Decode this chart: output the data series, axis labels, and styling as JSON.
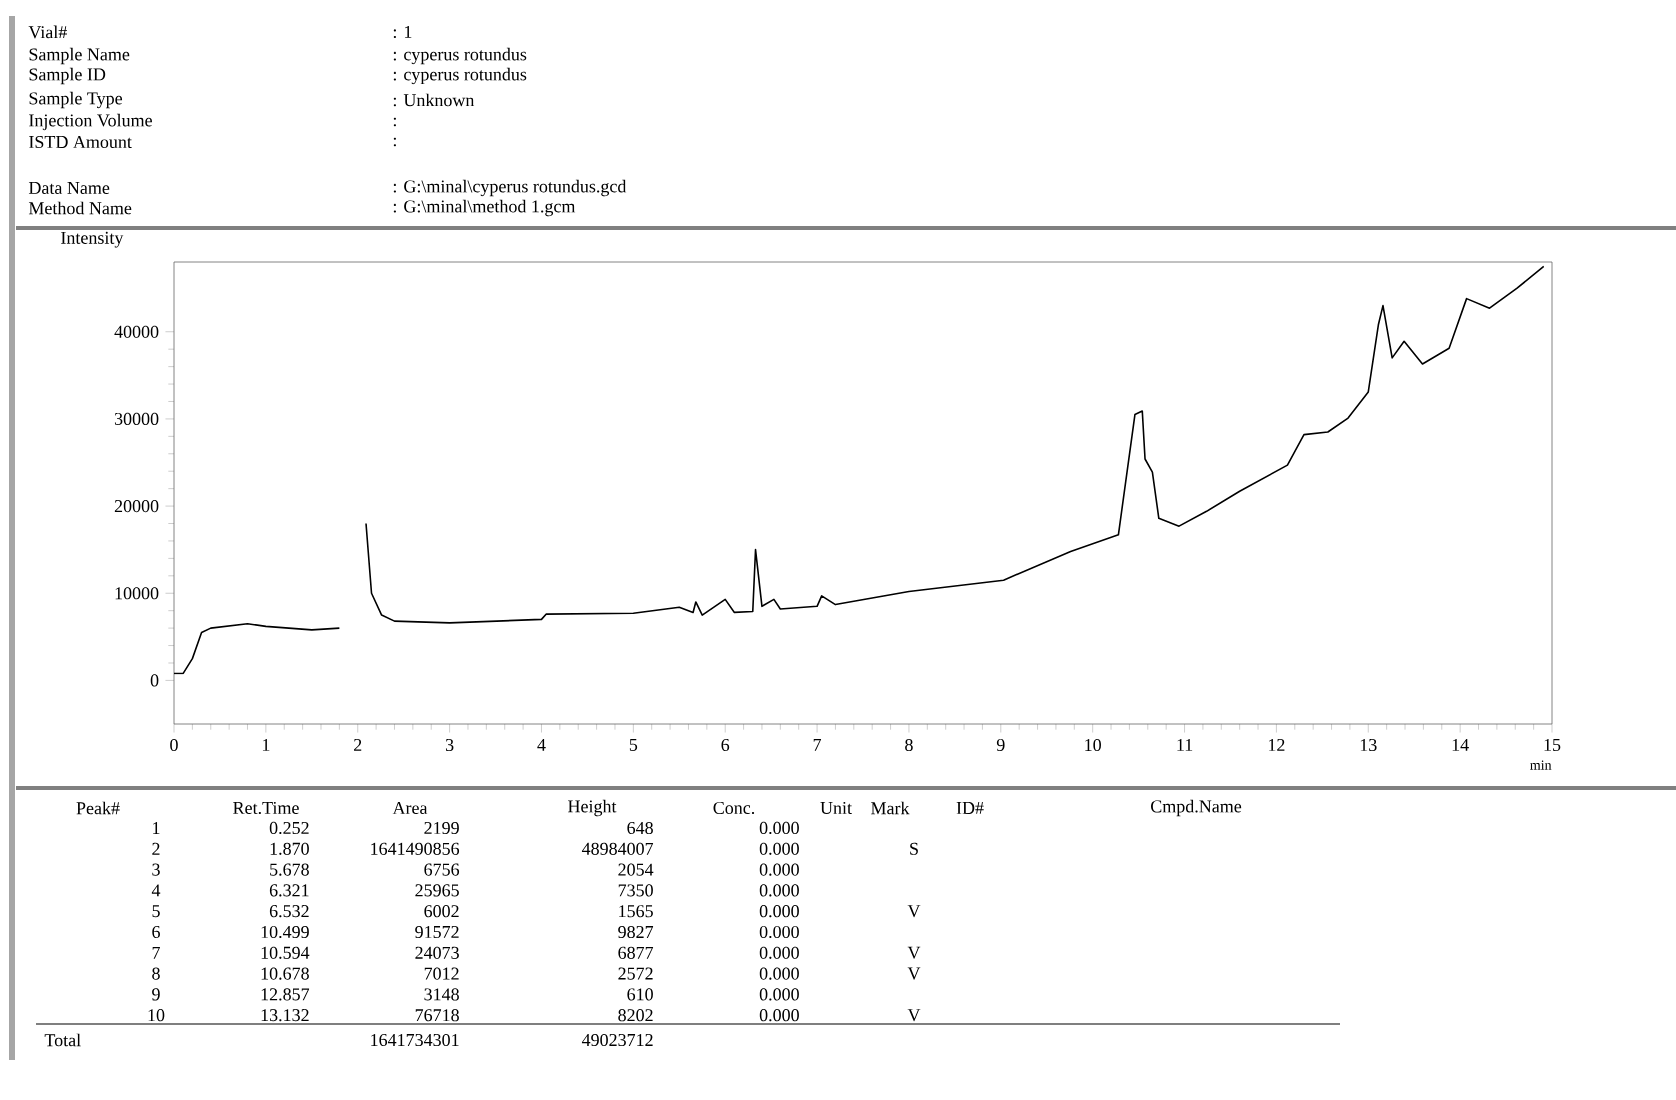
{
  "chart_data": {
    "type": "line",
    "xlabel": "min",
    "ylabel": "Intensity",
    "color": "#000000",
    "xlim": [
      0,
      15
    ],
    "ylim": [
      -5000,
      48000
    ],
    "xticks": [
      0,
      1,
      2,
      3,
      4,
      5,
      6,
      7,
      8,
      9,
      10,
      11,
      12,
      13,
      14,
      15
    ],
    "yticks": [
      0,
      10000,
      20000,
      30000,
      40000
    ],
    "x": [
      0,
      0.1,
      0.2,
      0.3,
      0.4,
      0.8,
      1.0,
      1.5,
      1.8,
      1.83,
      2.03,
      2.09,
      2.15,
      2.26,
      2.4,
      3.0,
      4.0,
      4.05,
      5.0,
      5.5,
      5.65,
      5.68,
      5.75,
      6.0,
      6.1,
      6.3,
      6.33,
      6.4,
      6.53,
      6.6,
      7.0,
      7.05,
      7.2,
      8.0,
      9.03,
      9.76,
      10.28,
      10.46,
      10.54,
      10.57,
      10.65,
      10.72,
      10.94,
      11.24,
      11.6,
      12.12,
      12.3,
      12.56,
      12.78,
      13.0,
      13.11,
      13.16,
      13.26,
      13.39,
      13.59,
      13.88,
      14.07,
      14.32,
      14.62,
      14.91
    ],
    "values": [
      800,
      800,
      2500,
      5500,
      6000,
      6500,
      6200,
      5800,
      6000,
      null,
      null,
      18000,
      10000,
      7500,
      6800,
      6600,
      7000,
      7600,
      7700,
      8400,
      7800,
      9000,
      7500,
      9300,
      7800,
      7900,
      15000,
      8500,
      9300,
      8200,
      8500,
      9700,
      8700,
      10200,
      11500,
      14800,
      16700,
      30500,
      30900,
      25400,
      23900,
      18600,
      17700,
      19400,
      21700,
      24700,
      28200,
      28500,
      30100,
      33100,
      40800,
      43000,
      37000,
      38900,
      36300,
      38100,
      43800,
      42700,
      45000,
      47500
    ],
    "annotations": [
      "Vial#",
      ": 1",
      "Sample Name",
      ": cyperus rotundus",
      "Sample ID",
      ": cyperus rotundus",
      "Sample Type",
      ": Unknown",
      "Injection Volume",
      ":",
      "ISTD Amount",
      ":",
      "Data Name",
      ": G:\\minal\\cyperus rotundus.gcd",
      "Method Name",
      ": G:\\minal\\method 1.gcm",
      "Peak#",
      "Ret.Time",
      "Area",
      "Height",
      "Conc.",
      "Unit",
      "Mark",
      "ID#",
      "Cmpd.Name",
      "1",
      "0.252",
      "2199",
      "648",
      "0.000",
      "2",
      "1.870",
      "1641490856",
      "48984007",
      "0.000",
      "3",
      "5.678",
      "6756",
      "2054",
      "0.000",
      "4",
      "6.321",
      "25965",
      "7350",
      "0.000",
      "5",
      "6.532",
      "6002",
      "1565",
      "0.000",
      "6",
      "10.499",
      "91572",
      "9827",
      "0.000",
      "7",
      "10.594",
      "24073",
      "6877",
      "0.000",
      "8",
      "10.678",
      "7012",
      "2572",
      "0.000",
      "9",
      "12.857",
      "3148",
      "610",
      "0.000",
      "10",
      "13.132",
      "76718",
      "8202",
      "0.000",
      "Total",
      "1641734301",
      "49023712",
      "S",
      "V",
      "V",
      "V",
      "V"
    ]
  }
}
